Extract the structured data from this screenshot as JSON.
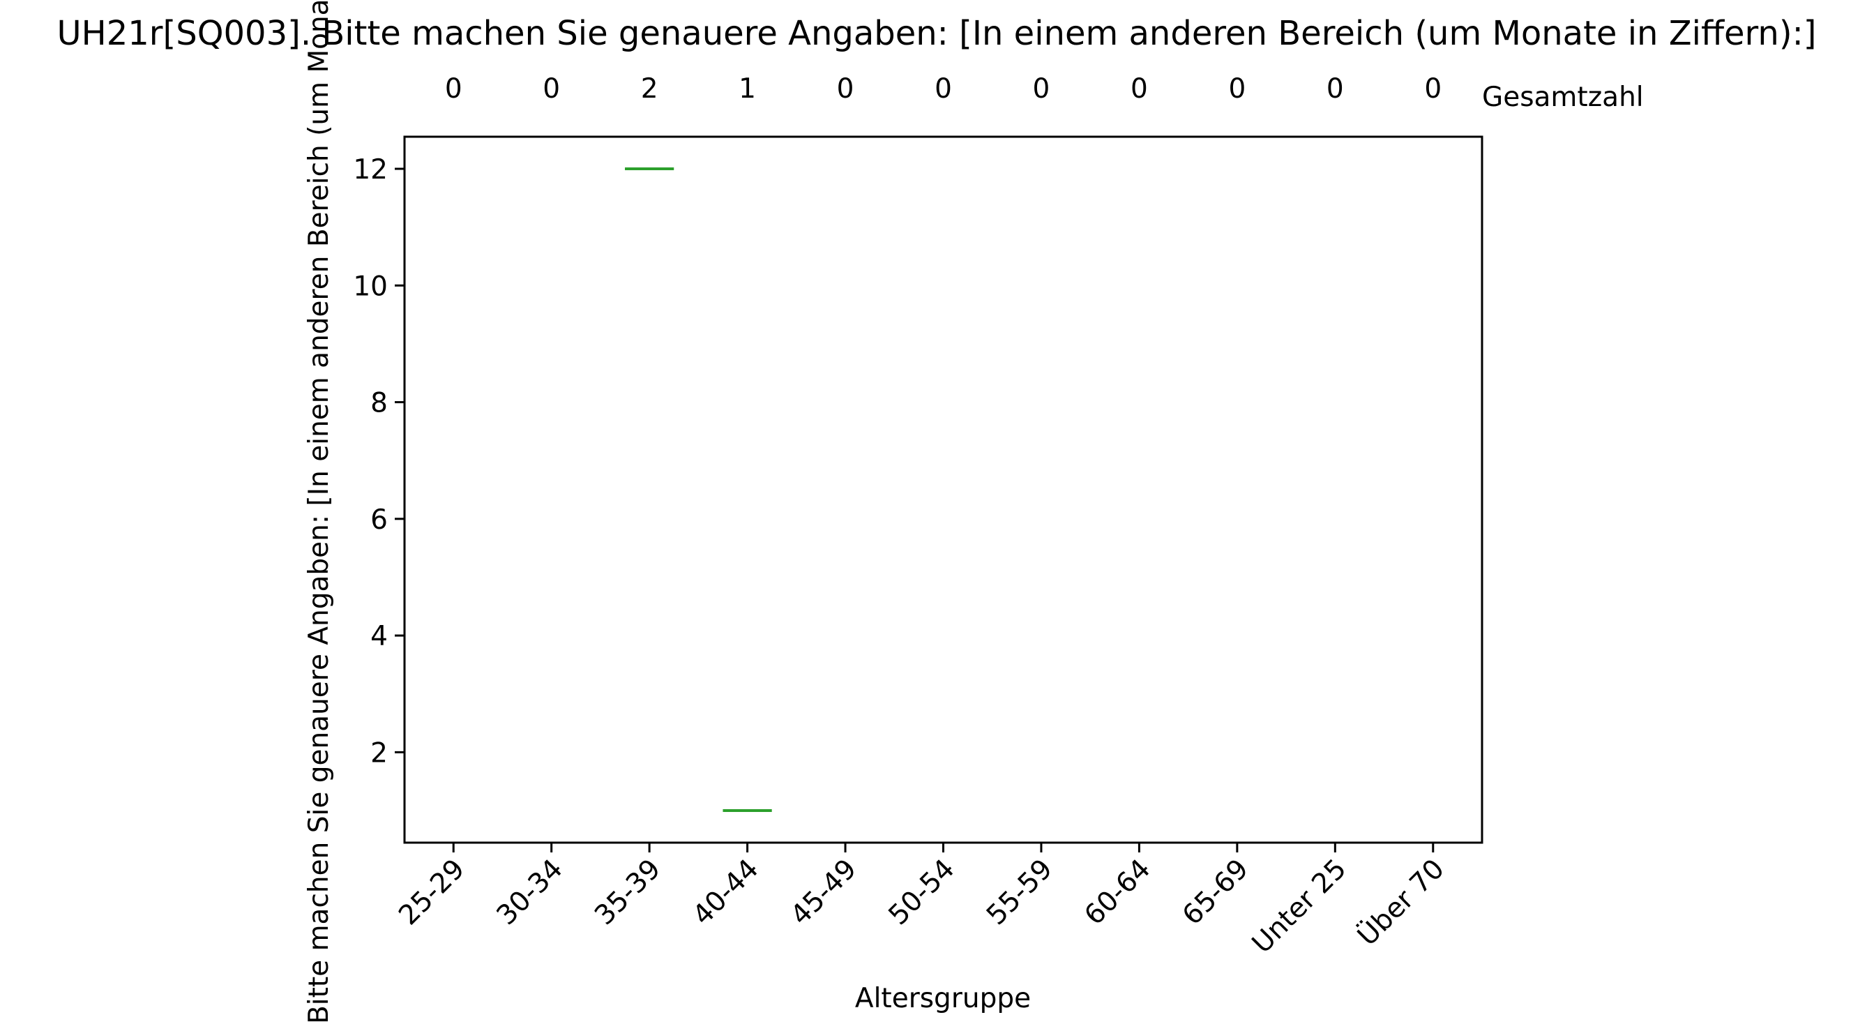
{
  "chart_data": {
    "type": "box",
    "title": "UH21r[SQ003]. Bitte machen Sie genauere Angaben: [In einem anderen Bereich (um Monate in Ziffern):]",
    "xlabel": "Altersgruppe",
    "ylabel": "Bitte machen Sie genauere Angaben: [In einem anderen Bereich (um Monate in Ziffern):]",
    "categories": [
      "25-29",
      "30-34",
      "35-39",
      "40-44",
      "45-49",
      "50-54",
      "55-59",
      "60-64",
      "65-69",
      "Unter 25",
      "Über 70"
    ],
    "counts": [
      0,
      0,
      2,
      1,
      0,
      0,
      0,
      0,
      0,
      0,
      0
    ],
    "counts_label": "Gesamtzahl",
    "medians": [
      null,
      null,
      12,
      1,
      null,
      null,
      null,
      null,
      null,
      null,
      null
    ],
    "ylim": [
      0.45,
      12.55
    ],
    "yticks": [
      2,
      4,
      6,
      8,
      10,
      12
    ],
    "median_color": "#2ca02c",
    "grid": false
  }
}
